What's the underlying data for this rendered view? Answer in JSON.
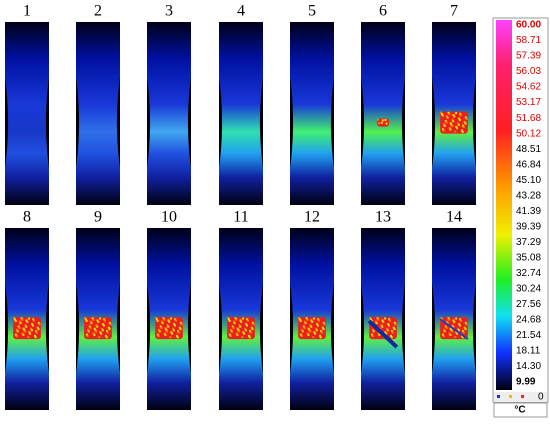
{
  "panels": [
    {
      "label": "1"
    },
    {
      "label": "2"
    },
    {
      "label": "3"
    },
    {
      "label": "4"
    },
    {
      "label": "5"
    },
    {
      "label": "6"
    },
    {
      "label": "7"
    },
    {
      "label": "8"
    },
    {
      "label": "9"
    },
    {
      "label": "10"
    },
    {
      "label": "11"
    },
    {
      "label": "12"
    },
    {
      "label": "13"
    },
    {
      "label": "14"
    }
  ],
  "scale": {
    "labels": [
      "60.00",
      "58.71",
      "57.39",
      "56.03",
      "54.62",
      "53.17",
      "51.68",
      "50.12",
      "48.51",
      "46.84",
      "45.10",
      "43.28",
      "41.39",
      "39.39",
      "37.29",
      "35.08",
      "32.74",
      "30.24",
      "27.56",
      "24.68",
      "21.54",
      "18.11",
      "14.30",
      "9.99"
    ],
    "unit": "°C",
    "zero": "0"
  }
}
